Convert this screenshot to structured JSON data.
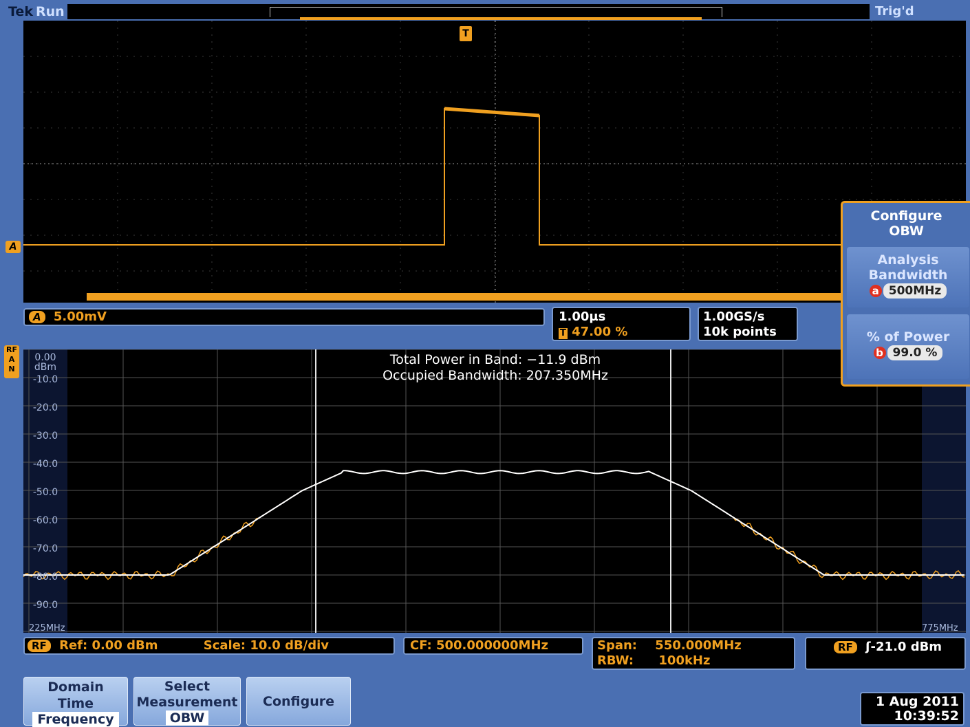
{
  "status": {
    "brand": "Tek",
    "run_state": "Run",
    "trigger_state": "Trig'd"
  },
  "time_domain": {
    "channel_marker": "A",
    "trigger_marker": "T",
    "vertical_scale": "5.00mV",
    "horizontal_scale": "1.00µs",
    "trigger_position": "47.00 %",
    "sample_rate": "1.00GS/s",
    "record_length": "10k points"
  },
  "spectrum": {
    "side_marker": "RF",
    "side_marker_sub_a": "A",
    "side_marker_sub_b": "N",
    "y_tick_labels": [
      "0.00 dBm",
      "-10.0",
      "-20.0",
      "-30.0",
      "-40.0",
      "-50.0",
      "-60.0",
      "-70.0",
      "-80.0",
      "-90.0"
    ],
    "start_freq": "225MHz",
    "stop_freq": "775MHz",
    "readout_line1": "Total Power in Band: −11.9 dBm",
    "readout_line2": "Occupied Bandwidth: 207.350MHz"
  },
  "rf_status": {
    "rf_badge": "RF",
    "ref": "Ref: 0.00 dBm",
    "scale": "Scale: 10.0 dB/div",
    "cf": "CF: 500.000000MHz",
    "span_label": "Span:",
    "span_value": "550.000MHz",
    "rbw_label": "RBW:",
    "rbw_value": "100kHz",
    "trigger_level": "ʃ-21.0 dBm"
  },
  "side_menu": {
    "title_line1": "Configure",
    "title_line2": "OBW",
    "analysis_bw_line1": "Analysis",
    "analysis_bw_line2": "Bandwidth",
    "analysis_bw_knob": "a",
    "analysis_bw_value": "500MHz",
    "power_pct_label": "% of Power",
    "power_pct_knob": "b",
    "power_pct_value": "99.0 %"
  },
  "bottom_menu": {
    "domain_line1": "Domain",
    "domain_line2": "Time",
    "domain_line3": "Frequency",
    "select_line1": "Select",
    "select_line2": "Measurement",
    "select_line3": "OBW",
    "configure": "Configure"
  },
  "datetime": {
    "date": "1 Aug 2011",
    "time": "10:39:52"
  },
  "colors": {
    "trace_time": "#f0a020",
    "trace_spectrum": "#ffffff",
    "accent": "#f0a020",
    "frame": "#4a6fb2"
  }
}
